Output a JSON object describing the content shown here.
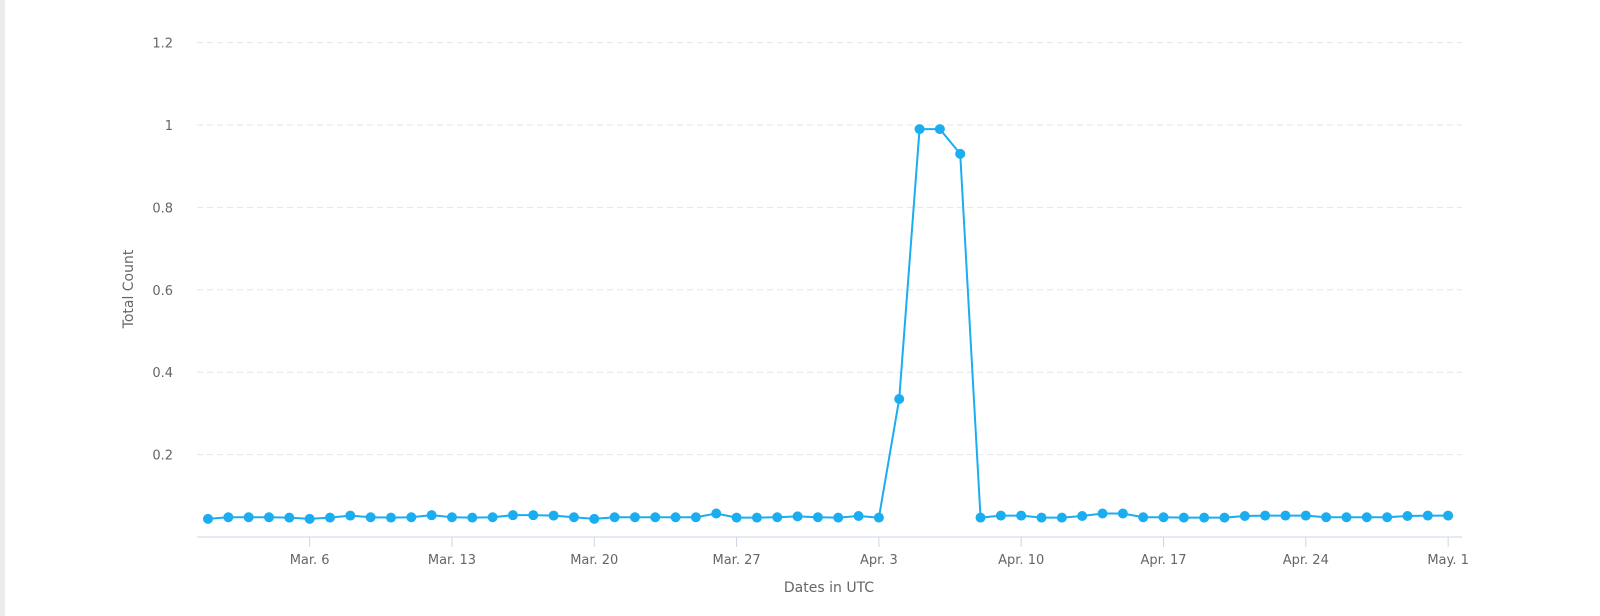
{
  "chart_data": {
    "type": "line",
    "title": "",
    "xlabel": "Dates in UTC",
    "ylabel": "Total Count",
    "ylim": [
      0,
      1.2
    ],
    "yticks": [
      "0.2",
      "0.4",
      "0.6",
      "0.8",
      "1",
      "1.2"
    ],
    "xtick_labels": [
      "Mar. 6",
      "Mar. 13",
      "Mar. 20",
      "Mar. 27",
      "Apr. 3",
      "Apr. 10",
      "Apr. 17",
      "Apr. 24",
      "May. 1"
    ],
    "xrange": [
      "Mar. 1",
      "May. 1"
    ],
    "grid": true,
    "color": "#1aadf0",
    "series": [
      {
        "x": [
          "Mar. 1",
          "Mar. 2",
          "Mar. 3",
          "Mar. 4",
          "Mar. 5",
          "Mar. 6",
          "Mar. 7",
          "Mar. 8",
          "Mar. 9",
          "Mar. 10",
          "Mar. 11",
          "Mar. 12",
          "Mar. 13",
          "Mar. 14",
          "Mar. 15",
          "Mar. 16",
          "Mar. 17",
          "Mar. 18",
          "Mar. 19",
          "Mar. 20",
          "Mar. 21",
          "Mar. 22",
          "Mar. 23",
          "Mar. 24",
          "Mar. 25",
          "Mar. 26",
          "Mar. 27",
          "Mar. 28",
          "Mar. 29",
          "Mar. 30",
          "Mar. 31",
          "Apr. 1",
          "Apr. 2",
          "Apr. 3",
          "Apr. 4",
          "Apr. 5",
          "Apr. 6",
          "Apr. 7",
          "Apr. 8",
          "Apr. 9",
          "Apr. 10",
          "Apr. 11",
          "Apr. 12",
          "Apr. 13",
          "Apr. 14",
          "Apr. 15",
          "Apr. 16",
          "Apr. 17",
          "Apr. 18",
          "Apr. 19",
          "Apr. 20",
          "Apr. 21",
          "Apr. 22",
          "Apr. 23",
          "Apr. 24",
          "Apr. 25",
          "Apr. 26",
          "Apr. 27",
          "Apr. 28",
          "Apr. 29",
          "Apr. 30",
          "May. 1"
        ],
        "values": [
          0.044,
          0.048,
          0.048,
          0.048,
          0.047,
          0.044,
          0.047,
          0.052,
          0.048,
          0.047,
          0.048,
          0.053,
          0.048,
          0.047,
          0.048,
          0.053,
          0.053,
          0.052,
          0.048,
          0.044,
          0.048,
          0.048,
          0.048,
          0.048,
          0.048,
          0.057,
          0.047,
          0.047,
          0.048,
          0.05,
          0.048,
          0.047,
          0.051,
          0.047,
          0.335,
          0.99,
          0.99,
          0.93,
          0.047,
          0.052,
          0.052,
          0.047,
          0.047,
          0.051,
          0.057,
          0.057,
          0.048,
          0.048,
          0.047,
          0.047,
          0.047,
          0.051,
          0.052,
          0.052,
          0.052,
          0.048,
          0.048,
          0.048,
          0.048,
          0.051,
          0.052,
          0.052
        ]
      }
    ]
  }
}
